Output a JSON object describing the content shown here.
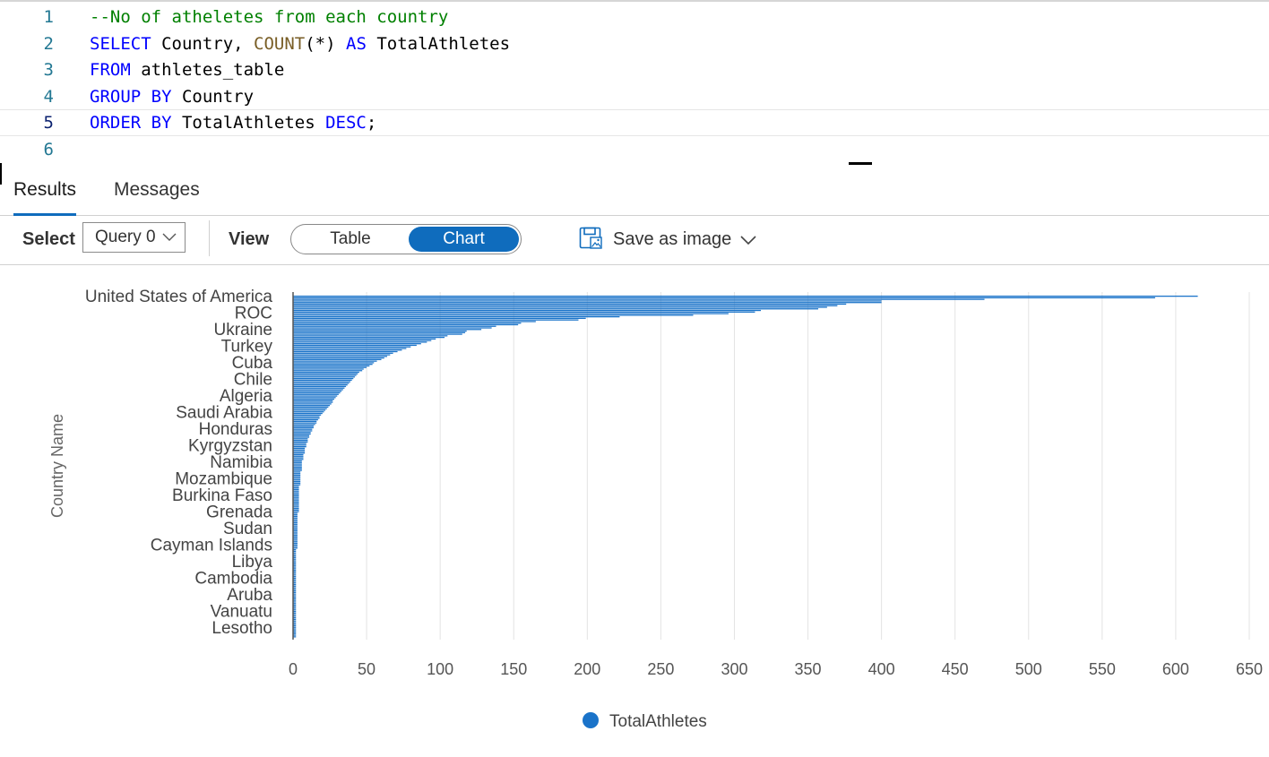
{
  "editor": {
    "lines": [
      {
        "num": "1",
        "tokens": [
          {
            "t": "--No of atheletes from each country",
            "c": "comment"
          }
        ]
      },
      {
        "num": "2",
        "tokens": [
          {
            "t": "SELECT",
            "c": "kw"
          },
          {
            "t": " Country, ",
            "c": "id"
          },
          {
            "t": "COUNT",
            "c": "fn"
          },
          {
            "t": "(*) ",
            "c": "id"
          },
          {
            "t": "AS",
            "c": "kw"
          },
          {
            "t": " TotalAthletes",
            "c": "id"
          }
        ]
      },
      {
        "num": "3",
        "tokens": [
          {
            "t": "FROM",
            "c": "kw"
          },
          {
            "t": " athletes_table",
            "c": "id"
          }
        ]
      },
      {
        "num": "4",
        "tokens": [
          {
            "t": "GROUP BY",
            "c": "kw"
          },
          {
            "t": " Country",
            "c": "id"
          }
        ]
      },
      {
        "num": "5",
        "tokens": [
          {
            "t": "ORDER BY",
            "c": "kw"
          },
          {
            "t": " TotalAthletes ",
            "c": "id"
          },
          {
            "t": "DESC",
            "c": "kw"
          },
          {
            "t": ";",
            "c": "id"
          }
        ]
      },
      {
        "num": "6",
        "tokens": []
      }
    ]
  },
  "tabs": {
    "results": "Results",
    "messages": "Messages"
  },
  "toolbar": {
    "select_label": "Select",
    "query_value": "Query 0",
    "view_label": "View",
    "table_option": "Table",
    "chart_option": "Chart",
    "save_label": "Save as image"
  },
  "colors": {
    "accent": "#0f6cbd",
    "bar": "#1a73c9",
    "comment": "#008000",
    "keyword": "#0000ff",
    "function": "#795e26"
  },
  "chart_data": {
    "type": "bar",
    "orientation": "horizontal",
    "ylabel": "Country Name",
    "xlim": [
      0,
      650
    ],
    "xticks": [
      0,
      50,
      100,
      150,
      200,
      250,
      300,
      350,
      400,
      450,
      500,
      550,
      600,
      650
    ],
    "grid": "vertical",
    "legend": "bottom",
    "series": [
      {
        "name": "TotalAthletes"
      }
    ],
    "visible_category_labels": [
      "United States of America",
      "ROC",
      "Ukraine",
      "Turkey",
      "Cuba",
      "Chile",
      "Algeria",
      "Saudi Arabia",
      "Honduras",
      "Kyrgyzstan",
      "Namibia",
      "Mozambique",
      "Burkina Faso",
      "Grenada",
      "Sudan",
      "Cayman Islands",
      "Libya",
      "Cambodia",
      "Aruba",
      "Vanuatu",
      "Lesotho"
    ],
    "values": [
      615,
      586,
      470,
      400,
      400,
      376,
      370,
      363,
      357,
      318,
      314,
      296,
      272,
      222,
      199,
      194,
      165,
      155,
      153,
      138,
      135,
      128,
      118,
      117,
      115,
      105,
      103,
      97,
      94,
      91,
      87,
      84,
      80,
      77,
      74,
      71,
      68,
      66,
      64,
      62,
      60,
      57,
      55,
      54,
      52,
      50,
      48,
      47,
      45,
      44,
      43,
      42,
      41,
      40,
      39,
      38,
      37,
      36,
      35,
      34,
      33,
      32,
      31,
      30,
      29,
      28,
      27,
      27,
      26,
      25,
      24,
      23,
      22,
      21,
      20,
      19,
      18,
      18,
      17,
      16,
      16,
      15,
      14,
      14,
      13,
      13,
      12,
      12,
      11,
      11,
      10,
      10,
      10,
      9,
      9,
      9,
      8,
      8,
      8,
      8,
      7,
      7,
      7,
      7,
      6,
      6,
      6,
      6,
      6,
      6,
      6,
      5,
      5,
      5,
      5,
      5,
      5,
      5,
      5,
      5,
      4,
      4,
      4,
      4,
      4,
      4,
      4,
      4,
      4,
      4,
      4,
      4,
      4,
      4,
      4,
      4,
      4,
      3,
      3,
      3,
      3,
      3,
      3,
      3,
      3,
      3,
      3,
      3,
      3,
      3,
      3,
      3,
      3,
      3,
      3,
      3,
      3,
      3,
      3,
      3,
      2,
      2,
      2,
      2,
      2,
      2,
      2,
      2,
      2,
      2,
      2,
      2,
      2,
      2,
      2,
      2,
      2,
      2,
      2,
      2,
      2,
      2,
      2,
      2,
      2,
      2,
      2,
      2,
      2,
      2,
      2,
      2,
      2,
      2,
      2,
      2,
      2,
      2,
      2,
      2,
      2,
      2,
      2,
      2,
      2,
      2,
      2,
      2,
      2,
      2,
      2,
      2,
      2,
      2,
      2,
      2
    ]
  }
}
